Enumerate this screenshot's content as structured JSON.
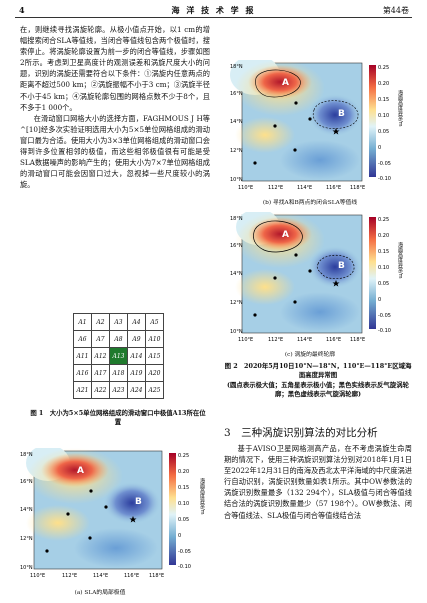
{
  "header": {
    "page_number": "4",
    "journal": "海 洋 技 术 学 报",
    "volume": "第44卷"
  },
  "left_text": [
    "在，则继续寻找涡旋轮廓。从极小值点开始，以1 cm的增幅搜索闭合SLA等值线，当闭合等值线包含两个极值时，搜索停止。将涡旋轮廓设置为前一步的闭合等值线，步骤如图2所示。考虑到卫星高度计的观测误差和涡旋尺度大小的问题，识别的涡旋还需要符合以下条件：①涡旋内任意两点的距离不超过500 km；②涡旋振幅不小于3 cm；③涡旋半径不小于45 km；④涡旋轮廓包围的网格点数不少于8个，且不多于1 000个。",
    "在滑动窗口网格大小的选择方面，FAGHMOUS J H等^[10]经多次实验证明选用大小为5×5单位网格组成的滑动窗口最为合适。使用大小为3×3单位网格组成的滑动窗口会得到许多位置相邻的极值，而这些相邻极值很有可能是受SLA数据噪声的影响产生的；使用大小为7×7单位网格组成的滑动窗口可能会因窗口过大，忽视掉一些尺度较小的涡旋。"
  ],
  "grid_cells": [
    "A1",
    "A2",
    "A3",
    "A4",
    "A5",
    "A6",
    "A7",
    "A8",
    "A9",
    "A10",
    "A11",
    "A12",
    "A13",
    "A14",
    "A15",
    "A16",
    "A17",
    "A18",
    "A19",
    "A20",
    "A21",
    "A22",
    "A23",
    "A24",
    "A25"
  ],
  "fig1_caption": "图 1　大小为5×5单位网格组成的滑动窗口中极值A13所在位置",
  "maps": {
    "lat_labels": [
      "18°N",
      "16°N",
      "14°N",
      "12°N",
      "10°N"
    ],
    "lon_labels": [
      "110°E",
      "112°E",
      "114°E",
      "116°E",
      "118°E"
    ],
    "colorbar_ticks": [
      "0.25",
      "0.20",
      "0.15",
      "0.10",
      "0.05",
      "0",
      "-0.05",
      "-0.10"
    ],
    "colorbar_title": "海面高度异常/m",
    "label_A": "A",
    "label_B": "B"
  },
  "sub_captions": {
    "a": "(a) SLA的局部极值",
    "b": "(b) 寻找A和B两点的闭合SLA等值线",
    "c": "(c) 涡旋的最终轮廓"
  },
  "fig2_caption": "图 2　2020年5月10日10°N—18°N，110°E—118°E区域海面高度异常图",
  "fig2_note": "(圆点表示极大值；五角星表示极小值；黑色实线表示反气旋涡轮廓；黑色虚线表示气旋涡轮廓)",
  "section_title": "3　三种涡旋识别算法的对比分析",
  "right_text": "基于AVISO卫星网格测高产品，在不考虑涡旋生命周期的情况下，使用三种涡旋识别算法分别对2018年1月1日至2022年12月31日的南海及西北太平洋海域的中尺度涡进行自动识别，涡旋识别数量如表1所示。其中OW参数法的涡旋识别数量最多（132 294个），SLA极值与闭合等值线结合法的涡旋识别数量最少（57 198个）。OW参数法、闭合等值线法、SLA极值与闭合等值线结合法"
}
